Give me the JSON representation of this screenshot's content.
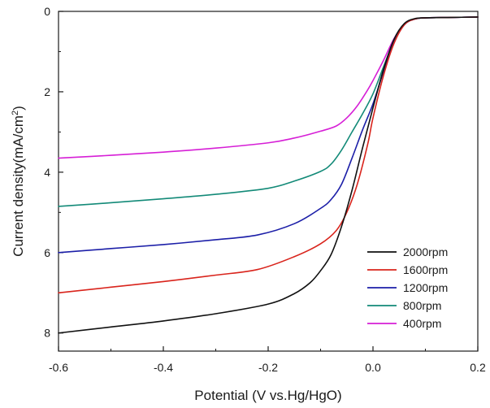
{
  "chart_data": {
    "type": "line",
    "title": "",
    "xlabel": "Potential (V vs.Hg/HgO)",
    "ylabel_main": "Current density(mA/cm",
    "ylabel_sup": "2",
    "ylabel_close": ")",
    "xlim": [
      -0.6,
      0.2
    ],
    "ylim": [
      8.45,
      0
    ],
    "y_inverted": true,
    "grid": false,
    "x_ticks": [
      -0.6,
      -0.4,
      -0.2,
      0.0,
      0.2
    ],
    "x_tick_labels": [
      "-0.6",
      "-0.4",
      "-0.2",
      "0.0",
      "0.2"
    ],
    "y_ticks": [
      0,
      2,
      4,
      6,
      8
    ],
    "y_tick_labels": [
      "0",
      "2",
      "4",
      "6",
      "8"
    ],
    "legend_position": "bottom-right",
    "series": [
      {
        "name": "2000rpm",
        "color": "#111111",
        "x": [
          -0.6,
          -0.5,
          -0.4,
          -0.3,
          -0.2,
          -0.15,
          -0.12,
          -0.1,
          -0.08,
          -0.06,
          -0.04,
          -0.02,
          0.0,
          0.02,
          0.04,
          0.06,
          0.08,
          0.1,
          0.15,
          0.2
        ],
        "y": [
          8.0,
          7.85,
          7.7,
          7.52,
          7.28,
          7.02,
          6.75,
          6.45,
          6.05,
          5.35,
          4.45,
          3.4,
          2.4,
          1.45,
          0.7,
          0.3,
          0.18,
          0.16,
          0.15,
          0.14
        ]
      },
      {
        "name": "1600rpm",
        "color": "#d9241c",
        "x": [
          -0.6,
          -0.5,
          -0.4,
          -0.3,
          -0.22,
          -0.15,
          -0.1,
          -0.07,
          -0.05,
          -0.03,
          -0.01,
          0.0,
          0.02,
          0.04,
          0.06,
          0.08,
          0.1,
          0.15,
          0.2
        ],
        "y": [
          7.0,
          6.86,
          6.72,
          6.56,
          6.42,
          6.1,
          5.78,
          5.45,
          5.0,
          4.3,
          3.3,
          2.65,
          1.6,
          0.8,
          0.33,
          0.19,
          0.16,
          0.15,
          0.14
        ]
      },
      {
        "name": "1200rpm",
        "color": "#1c1fa8",
        "x": [
          -0.6,
          -0.5,
          -0.4,
          -0.3,
          -0.22,
          -0.15,
          -0.1,
          -0.08,
          -0.06,
          -0.04,
          -0.02,
          0.0,
          0.02,
          0.04,
          0.06,
          0.08,
          0.1,
          0.15,
          0.2
        ],
        "y": [
          6.0,
          5.9,
          5.8,
          5.68,
          5.56,
          5.28,
          4.9,
          4.68,
          4.3,
          3.65,
          2.95,
          2.3,
          1.5,
          0.78,
          0.33,
          0.19,
          0.16,
          0.15,
          0.14
        ]
      },
      {
        "name": "800rpm",
        "color": "#138a78",
        "x": [
          -0.6,
          -0.5,
          -0.4,
          -0.3,
          -0.2,
          -0.15,
          -0.1,
          -0.08,
          -0.06,
          -0.04,
          -0.02,
          0.0,
          0.02,
          0.04,
          0.06,
          0.08,
          0.1,
          0.15,
          0.2
        ],
        "y": [
          4.85,
          4.76,
          4.66,
          4.55,
          4.4,
          4.22,
          3.98,
          3.8,
          3.45,
          3.0,
          2.55,
          2.05,
          1.38,
          0.74,
          0.32,
          0.19,
          0.16,
          0.15,
          0.14
        ]
      },
      {
        "name": "400rpm",
        "color": "#d61fd6",
        "x": [
          -0.6,
          -0.5,
          -0.4,
          -0.3,
          -0.2,
          -0.15,
          -0.1,
          -0.07,
          -0.05,
          -0.03,
          -0.01,
          0.0,
          0.02,
          0.04,
          0.06,
          0.08,
          0.1,
          0.15,
          0.2
        ],
        "y": [
          3.65,
          3.58,
          3.5,
          3.4,
          3.27,
          3.15,
          2.98,
          2.85,
          2.65,
          2.35,
          1.95,
          1.72,
          1.22,
          0.68,
          0.31,
          0.19,
          0.16,
          0.15,
          0.14
        ]
      }
    ]
  }
}
